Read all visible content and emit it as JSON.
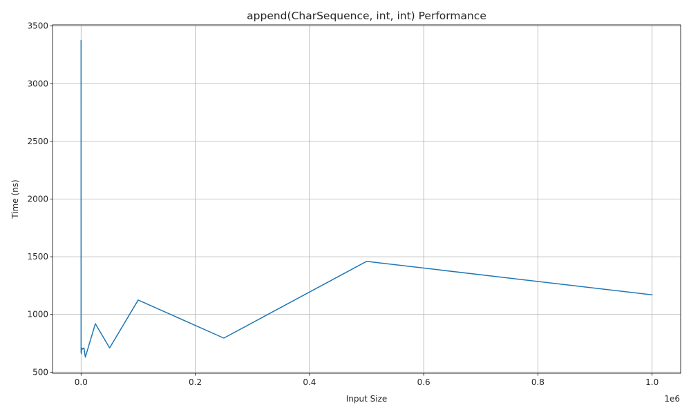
{
  "chart_data": {
    "type": "line",
    "title": "append(CharSequence, int, int) Performance",
    "xlabel": "Input Size",
    "ylabel": "Time (ns)",
    "x_offset_label": "1e6",
    "xlim": [
      -50000,
      1050000
    ],
    "ylim": [
      490,
      3510
    ],
    "grid": true,
    "x_ticks": [
      0,
      200000,
      400000,
      600000,
      800000,
      1000000
    ],
    "x_tick_labels": [
      "0.0",
      "0.2",
      "0.4",
      "0.6",
      "0.8",
      "1.0"
    ],
    "y_ticks": [
      500,
      1000,
      1500,
      2000,
      2500,
      3000,
      3500
    ],
    "y_tick_labels": [
      "500",
      "1000",
      "1500",
      "2000",
      "2500",
      "3000",
      "3500"
    ],
    "series": [
      {
        "color": "#1f77b4",
        "x": [
          10,
          50,
          100,
          500,
          1000,
          2500,
          5000,
          7500,
          25000,
          50000,
          100000,
          250000,
          500000,
          1000000
        ],
        "y": [
          3375,
          670,
          700,
          660,
          710,
          700,
          710,
          630,
          920,
          710,
          1125,
          795,
          1460,
          1170
        ]
      }
    ]
  }
}
